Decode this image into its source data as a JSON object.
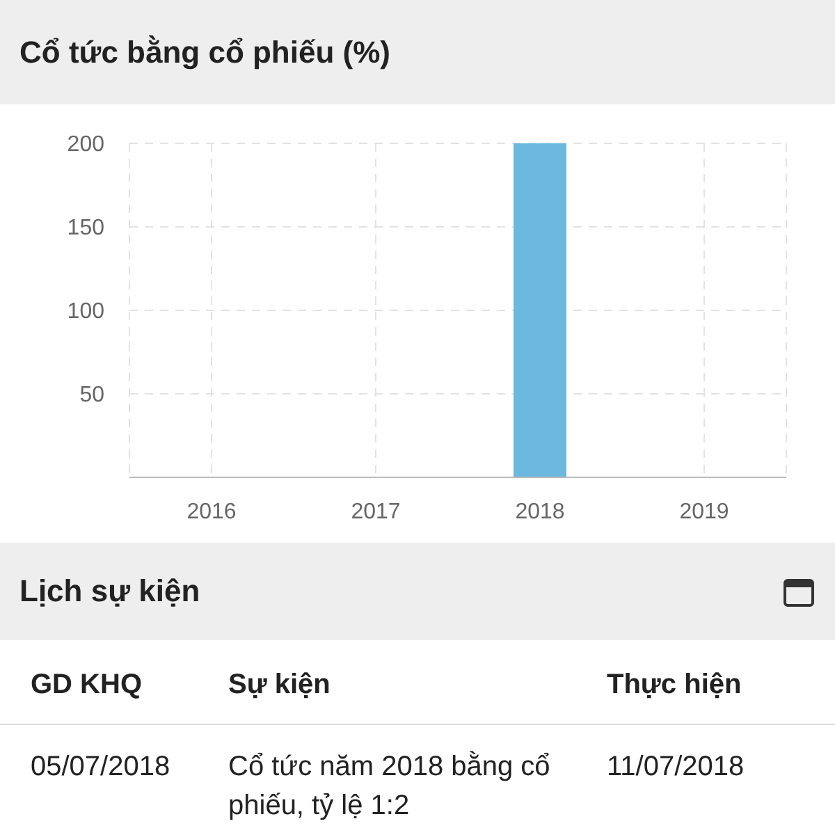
{
  "chart_data": [
    {
      "type": "bar",
      "title": "Cổ tức bằng cổ phiếu (%)",
      "categories": [
        "2016",
        "2017",
        "2018",
        "2019"
      ],
      "values": [
        0,
        0,
        200,
        0
      ],
      "color": "#6cb8de",
      "ylim": [
        0,
        200
      ],
      "yticks": [
        50,
        100,
        150,
        200
      ],
      "grid": true,
      "legend": false
    },
    {
      "type": "other",
      "title": "Lịch sự kiện",
      "annotations": [
        "GD KHQ",
        "Sự kiện",
        "Thực hiện",
        "05/07/2018",
        "Cổ tức năm 2018 bằng cổ phiếu, tỷ lệ 1:2",
        "11/07/2018"
      ]
    }
  ]
}
